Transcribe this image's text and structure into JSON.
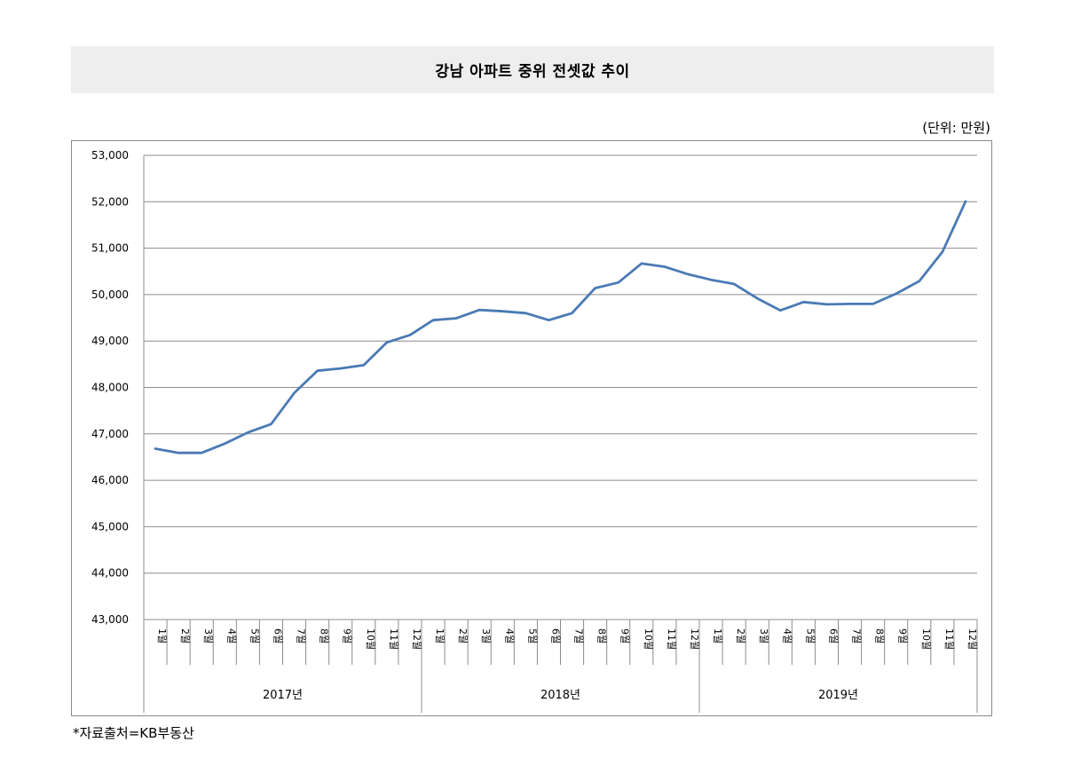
{
  "header": {
    "title": "강남 아파트 중위 전셋값 추이"
  },
  "unit_label": "(단위: 만원)",
  "source_note": "*자료출처=KB부동산",
  "chart_data": {
    "type": "line",
    "title": "강남 아파트 중위 전셋값 추이",
    "unit": "만원",
    "ylim": [
      43000,
      53000
    ],
    "yticks": [
      "43,000",
      "44,000",
      "45,000",
      "46,000",
      "47,000",
      "48,000",
      "49,000",
      "50,000",
      "51,000",
      "52,000",
      "53,000"
    ],
    "grid": true,
    "line_color": "#4a7ab5",
    "groups": [
      {
        "label": "2017년",
        "months": [
          "1월",
          "2월",
          "3월",
          "4월",
          "5월",
          "6월",
          "7월",
          "8월",
          "9월",
          "10월",
          "11월",
          "12월"
        ]
      },
      {
        "label": "2018년",
        "months": [
          "1월",
          "2월",
          "3월",
          "4월",
          "5월",
          "6월",
          "7월",
          "8월",
          "9월",
          "10월",
          "11월",
          "12월"
        ]
      },
      {
        "label": "2019년",
        "months": [
          "1월",
          "2월",
          "3월",
          "4월",
          "5월",
          "6월",
          "7월",
          "8월",
          "9월",
          "10월",
          "11월",
          "12월"
        ]
      }
    ],
    "values": [
      46680,
      46590,
      46590,
      46790,
      47030,
      47210,
      47880,
      48360,
      48410,
      48480,
      48970,
      49130,
      49450,
      49490,
      49670,
      49640,
      49600,
      49450,
      49600,
      50140,
      50260,
      50670,
      50600,
      50440,
      50320,
      50230,
      49920,
      49660,
      49840,
      49790,
      49800,
      49800,
      50020,
      50290,
      50920,
      52010
    ]
  }
}
